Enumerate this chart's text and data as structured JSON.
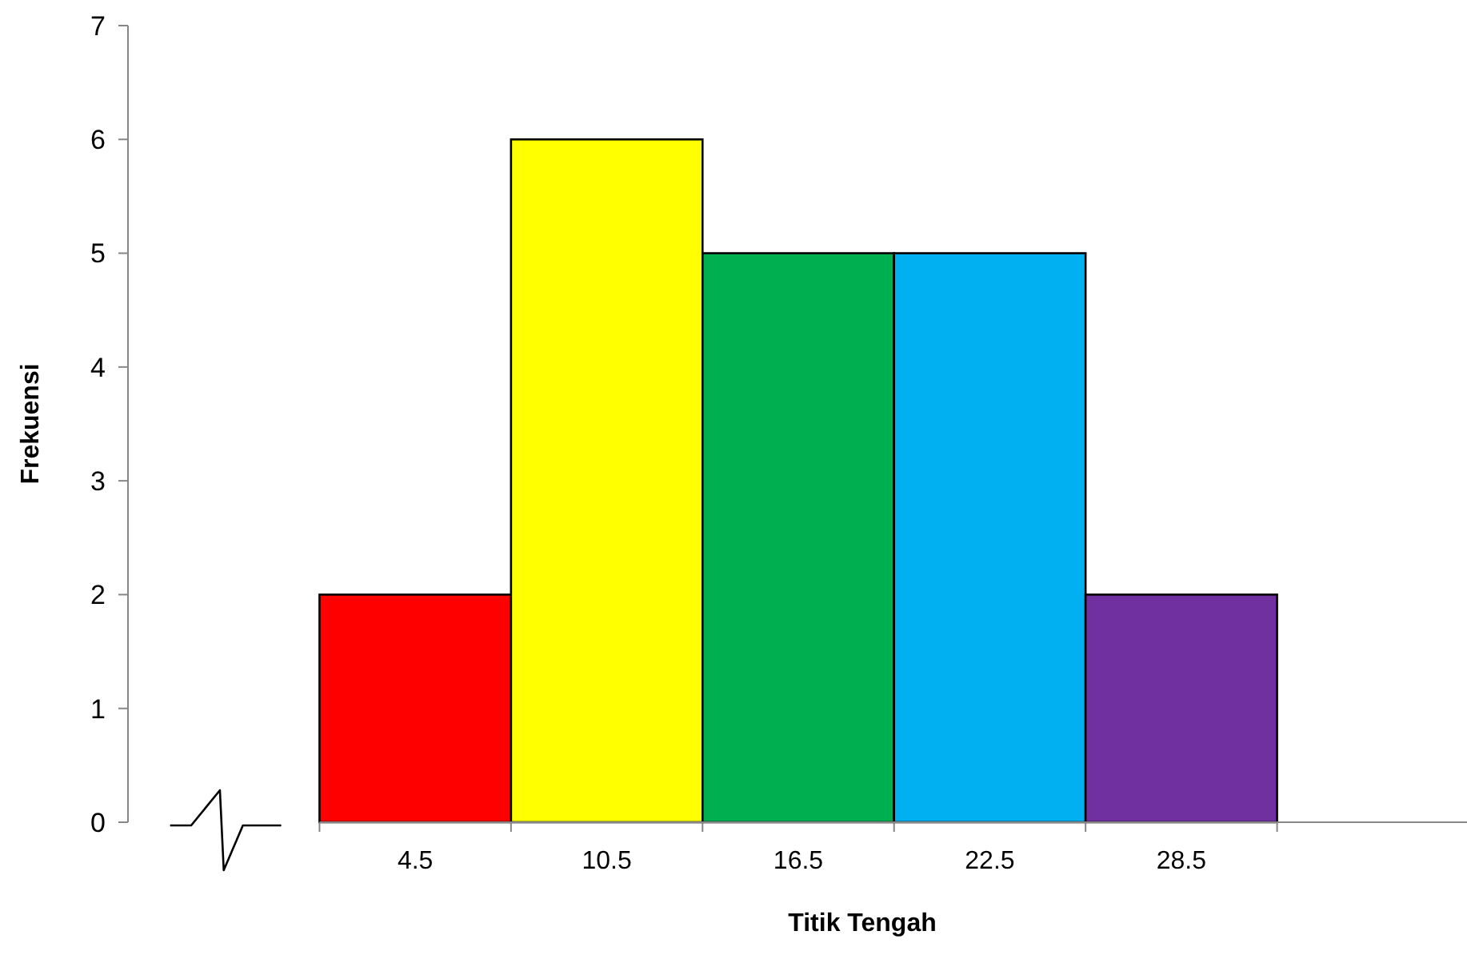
{
  "chart_data": {
    "type": "bar",
    "xlabel": "Titik Tengah",
    "ylabel": "Frekuensi",
    "categories": [
      null,
      "4.5",
      "10.5",
      "16.5",
      "22.5",
      "28.5",
      null
    ],
    "values": [
      null,
      2,
      6,
      5,
      5,
      2,
      null
    ],
    "colors": [
      null,
      "#ff0000",
      "#ffff00",
      "#00b050",
      "#00b0f0",
      "#7030a0",
      null
    ],
    "ylim": [
      0,
      7
    ],
    "yticks": [
      0,
      1,
      2,
      3,
      4,
      5,
      6,
      7
    ],
    "grid": false
  }
}
